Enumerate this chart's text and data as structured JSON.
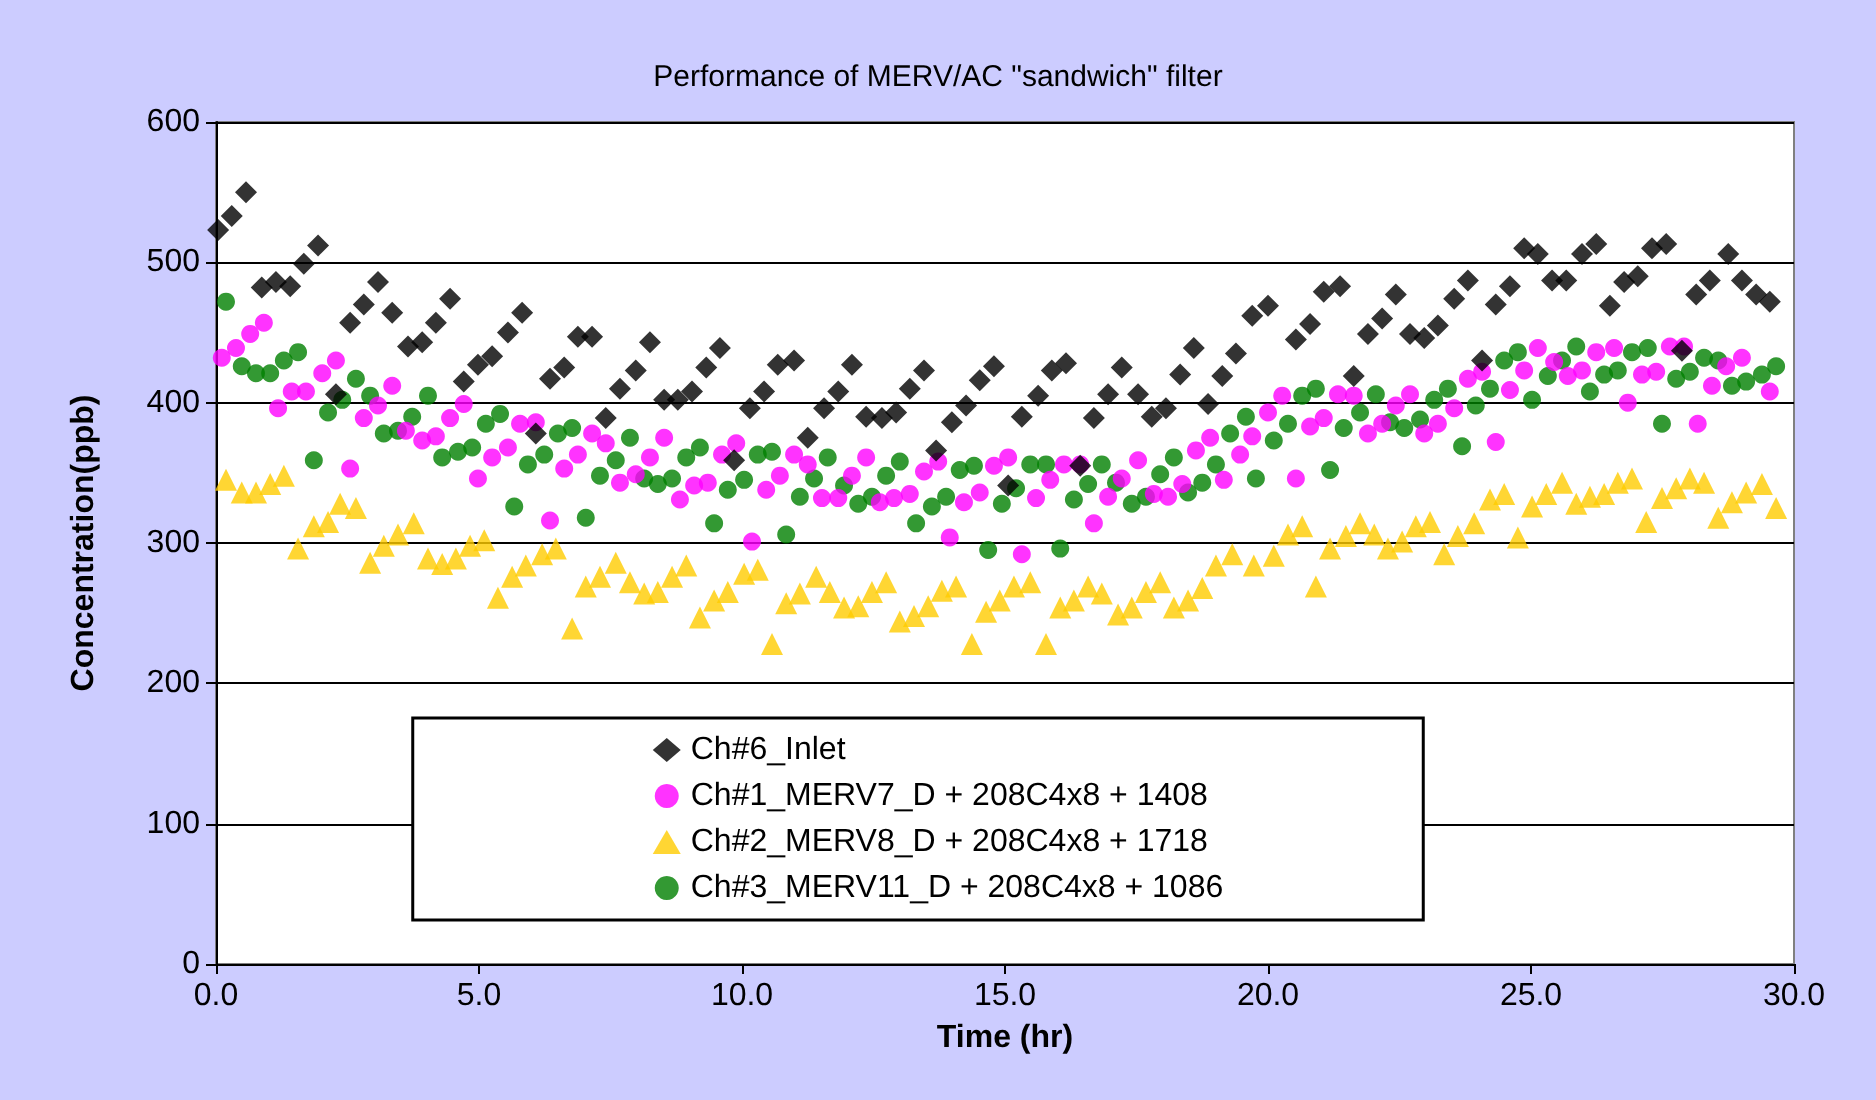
{
  "chart_data": {
    "type": "scatter",
    "title": "Performance of MERV/AC \"sandwich\" filter",
    "xlabel": "Time (hr)",
    "ylabel": "Concentration(ppb)",
    "xlim": [
      0,
      30
    ],
    "xticks": [
      {
        "value": 0,
        "label": "0.0"
      },
      {
        "value": 5,
        "label": "5.0"
      },
      {
        "value": 10,
        "label": "10.0"
      },
      {
        "value": 15,
        "label": "15.0"
      },
      {
        "value": 20,
        "label": "20.0"
      },
      {
        "value": 25,
        "label": "25.0"
      },
      {
        "value": 30,
        "label": "30.0"
      }
    ],
    "ylim": [
      0,
      600
    ],
    "yticks": [
      0,
      100,
      200,
      300,
      400,
      500,
      600
    ],
    "grid": "y",
    "legend": "bottom",
    "series": [
      {
        "name": "Ch#6_Inlet",
        "color": "#000000",
        "marker": "diamond",
        "x": [
          0.04,
          0.3,
          0.57,
          0.87,
          1.14,
          1.41,
          1.67,
          1.94,
          2.28,
          2.55,
          2.81,
          3.08,
          3.35,
          3.65,
          3.92,
          4.18,
          4.45,
          4.71,
          4.98,
          5.25,
          5.55,
          5.82,
          6.08,
          6.35,
          6.62,
          6.88,
          7.15,
          7.41,
          7.68,
          7.98,
          8.25,
          8.52,
          8.78,
          9.05,
          9.32,
          9.58,
          9.85,
          10.15,
          10.42,
          10.68,
          10.99,
          11.25,
          11.56,
          11.83,
          12.09,
          12.36,
          12.66,
          12.93,
          13.19,
          13.46,
          13.69,
          13.99,
          14.26,
          14.52,
          14.79,
          15.06,
          15.32,
          15.63,
          15.89,
          16.16,
          16.43,
          16.69,
          16.96,
          17.22,
          17.53,
          17.79,
          18.06,
          18.33,
          18.59,
          18.86,
          19.13,
          19.39,
          19.7,
          20.0,
          20.53,
          20.8,
          21.06,
          21.37,
          21.63,
          21.9,
          22.17,
          22.43,
          22.7,
          22.97,
          23.23,
          23.54,
          23.8,
          24.07,
          24.33,
          24.6,
          24.87,
          25.13,
          25.4,
          25.67,
          25.97,
          26.24,
          26.5,
          26.77,
          27.03,
          27.3,
          27.57,
          27.87,
          28.14,
          28.4,
          28.75,
          29.01,
          29.28,
          29.54
        ],
        "values": [
          523,
          533,
          550,
          482,
          486,
          483,
          499,
          512,
          406,
          457,
          470,
          486,
          464,
          440,
          443,
          457,
          474,
          415,
          427,
          433,
          450,
          464,
          378,
          417,
          425,
          447,
          447,
          389,
          410,
          423,
          443,
          402,
          402,
          408,
          425,
          439,
          359,
          396,
          408,
          427,
          430,
          375,
          396,
          408,
          427,
          390,
          389,
          393,
          410,
          423,
          366,
          386,
          398,
          416,
          426,
          341,
          390,
          405,
          423,
          428,
          355,
          389,
          406,
          425,
          406,
          390,
          396,
          420,
          439,
          399,
          419,
          435,
          462,
          469,
          445,
          456,
          479,
          483,
          419,
          449,
          460,
          477,
          449,
          446,
          455,
          474,
          487,
          430,
          470,
          483,
          510,
          506,
          487,
          487,
          506,
          513,
          469,
          486,
          490,
          510,
          513,
          437,
          477,
          487,
          506,
          487,
          477,
          472
        ]
      },
      {
        "name": "Ch#1_MERV7_D + 208C4x8 + 1408",
        "color": "#ff00ff",
        "marker": "circle",
        "x": [
          0.11,
          0.38,
          0.65,
          0.91,
          1.18,
          1.44,
          1.71,
          2.02,
          2.28,
          2.55,
          2.81,
          3.08,
          3.35,
          3.61,
          3.92,
          4.18,
          4.45,
          4.71,
          4.98,
          5.25,
          5.55,
          5.78,
          6.08,
          6.35,
          6.62,
          6.88,
          7.15,
          7.41,
          7.68,
          7.98,
          8.25,
          8.52,
          8.82,
          9.09,
          9.35,
          9.62,
          9.89,
          10.19,
          10.46,
          10.72,
          10.99,
          11.25,
          11.52,
          11.83,
          12.09,
          12.36,
          12.62,
          12.89,
          13.19,
          13.46,
          13.73,
          13.95,
          14.22,
          14.52,
          14.79,
          15.06,
          15.32,
          15.59,
          15.86,
          16.12,
          16.43,
          16.69,
          16.96,
          17.22,
          17.53,
          17.83,
          18.1,
          18.37,
          18.63,
          18.9,
          19.16,
          19.47,
          19.7,
          20.0,
          20.27,
          20.53,
          20.8,
          21.06,
          21.33,
          21.63,
          21.9,
          22.17,
          22.43,
          22.7,
          22.97,
          23.23,
          23.54,
          23.8,
          24.07,
          24.33,
          24.6,
          24.87,
          25.13,
          25.44,
          25.7,
          25.97,
          26.24,
          26.58,
          26.84,
          27.11,
          27.38,
          27.64,
          27.91,
          28.17,
          28.44,
          28.71,
          29.01,
          29.54
        ],
        "values": [
          432,
          439,
          449,
          457,
          396,
          408,
          408,
          421,
          430,
          353,
          389,
          398,
          412,
          380,
          373,
          376,
          389,
          399,
          346,
          361,
          368,
          385,
          386,
          316,
          353,
          363,
          378,
          371,
          343,
          349,
          361,
          375,
          331,
          341,
          343,
          363,
          371,
          301,
          338,
          348,
          363,
          356,
          332,
          332,
          348,
          361,
          329,
          332,
          335,
          351,
          358,
          304,
          329,
          336,
          355,
          361,
          292,
          332,
          345,
          356,
          356,
          314,
          333,
          346,
          359,
          335,
          333,
          342,
          366,
          375,
          345,
          363,
          376,
          393,
          405,
          346,
          383,
          389,
          406,
          405,
          378,
          385,
          398,
          406,
          378,
          385,
          396,
          417,
          422,
          372,
          409,
          423,
          439,
          429,
          419,
          423,
          436,
          439,
          400,
          420,
          422,
          440,
          440,
          385,
          412,
          426,
          432,
          408
        ]
      },
      {
        "name": "Ch#2_MERV8_D + 208C4x8 + 1718",
        "color": "#ffcc00",
        "marker": "triangle",
        "x": [
          0.19,
          0.49,
          0.76,
          1.03,
          1.29,
          1.56,
          1.86,
          2.13,
          2.36,
          2.66,
          2.93,
          3.19,
          3.46,
          3.76,
          4.03,
          4.3,
          4.56,
          4.83,
          5.1,
          5.36,
          5.63,
          5.89,
          6.2,
          6.46,
          6.77,
          7.03,
          7.3,
          7.6,
          7.87,
          8.14,
          8.4,
          8.67,
          8.94,
          9.2,
          9.47,
          9.73,
          10.04,
          10.3,
          10.57,
          10.84,
          11.1,
          11.41,
          11.67,
          11.94,
          12.21,
          12.47,
          12.74,
          13.0,
          13.27,
          13.54,
          13.8,
          14.07,
          14.37,
          14.64,
          14.9,
          15.17,
          15.48,
          15.78,
          16.05,
          16.31,
          16.58,
          16.84,
          17.15,
          17.41,
          17.68,
          17.95,
          18.21,
          18.48,
          18.75,
          19.01,
          19.32,
          19.73,
          20.11,
          20.38,
          20.65,
          20.91,
          21.18,
          21.48,
          21.75,
          22.02,
          22.28,
          22.55,
          22.81,
          23.08,
          23.35,
          23.61,
          23.92,
          24.22,
          24.49,
          24.75,
          25.02,
          25.29,
          25.59,
          25.86,
          26.12,
          26.39,
          26.65,
          26.92,
          27.19,
          27.49,
          27.76,
          28.02,
          28.29,
          28.56,
          28.82,
          29.09,
          29.39,
          29.66
        ],
        "values": [
          345,
          336,
          336,
          342,
          348,
          296,
          312,
          315,
          328,
          325,
          286,
          298,
          306,
          314,
          289,
          285,
          289,
          298,
          302,
          261,
          276,
          284,
          292,
          296,
          239,
          269,
          276,
          286,
          272,
          264,
          265,
          276,
          284,
          247,
          259,
          265,
          278,
          281,
          228,
          257,
          264,
          276,
          265,
          254,
          255,
          265,
          272,
          244,
          248,
          255,
          266,
          269,
          228,
          251,
          259,
          269,
          272,
          228,
          254,
          259,
          269,
          264,
          249,
          254,
          265,
          272,
          254,
          259,
          268,
          284,
          292,
          284,
          291,
          306,
          312,
          269,
          296,
          305,
          314,
          306,
          296,
          301,
          312,
          315,
          292,
          305,
          314,
          331,
          335,
          304,
          326,
          335,
          343,
          328,
          333,
          335,
          343,
          346,
          315,
          332,
          339,
          346,
          343,
          318,
          329,
          336,
          342,
          325
        ]
      },
      {
        "name": "Ch#3_MERV11_D + 208C4x8 + 1086",
        "color": "#008000",
        "marker": "circle",
        "x": [
          0.19,
          0.49,
          0.76,
          1.03,
          1.29,
          1.56,
          1.86,
          2.13,
          2.4,
          2.66,
          2.93,
          3.19,
          3.46,
          3.73,
          4.03,
          4.3,
          4.6,
          4.87,
          5.13,
          5.4,
          5.67,
          5.93,
          6.24,
          6.5,
          6.77,
          7.03,
          7.3,
          7.6,
          7.87,
          8.14,
          8.4,
          8.67,
          8.94,
          9.2,
          9.47,
          9.73,
          10.04,
          10.3,
          10.57,
          10.84,
          11.1,
          11.37,
          11.63,
          11.94,
          12.21,
          12.47,
          12.74,
          13.0,
          13.31,
          13.61,
          13.88,
          14.14,
          14.41,
          14.68,
          14.94,
          15.21,
          15.48,
          15.78,
          16.05,
          16.31,
          16.58,
          16.84,
          17.11,
          17.41,
          17.68,
          17.95,
          18.21,
          18.48,
          18.75,
          19.01,
          19.28,
          19.58,
          19.77,
          20.11,
          20.38,
          20.65,
          20.91,
          21.18,
          21.44,
          21.75,
          22.05,
          22.32,
          22.59,
          22.89,
          23.16,
          23.42,
          23.69,
          23.95,
          24.22,
          24.49,
          24.75,
          25.02,
          25.32,
          25.59,
          25.86,
          26.12,
          26.39,
          26.65,
          26.92,
          27.22,
          27.49,
          27.76,
          28.02,
          28.29,
          28.56,
          28.82,
          29.09,
          29.39,
          29.66
        ],
        "values": [
          472,
          426,
          421,
          421,
          430,
          436,
          359,
          393,
          402,
          417,
          405,
          378,
          380,
          390,
          405,
          361,
          365,
          368,
          385,
          392,
          326,
          356,
          363,
          378,
          382,
          318,
          348,
          359,
          375,
          346,
          342,
          346,
          361,
          368,
          314,
          338,
          345,
          363,
          365,
          306,
          333,
          346,
          361,
          341,
          328,
          333,
          348,
          358,
          314,
          326,
          333,
          352,
          355,
          295,
          328,
          339,
          356,
          356,
          296,
          331,
          342,
          356,
          343,
          328,
          333,
          349,
          361,
          336,
          343,
          356,
          378,
          390,
          346,
          373,
          385,
          405,
          410,
          352,
          382,
          393,
          406,
          386,
          382,
          388,
          402,
          410,
          369,
          398,
          410,
          430,
          436,
          402,
          419,
          430,
          440,
          408,
          420,
          423,
          436,
          439,
          385,
          417,
          422,
          432,
          430,
          412,
          415,
          420,
          426
        ]
      }
    ]
  }
}
